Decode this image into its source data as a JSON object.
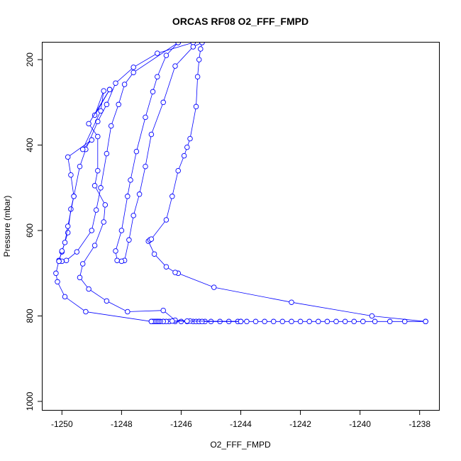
{
  "chart_data": {
    "type": "line",
    "title": "ORCAS RF08 O2_FFF_FMPD",
    "xlabel": "O2_FFF_FMPD",
    "ylabel": "Pressure (mbar)",
    "xlim": [
      -1250.65,
      -1237.35
    ],
    "ylim": [
      1020,
      160
    ],
    "y_reversed": true,
    "x_ticks": [
      -1250,
      -1248,
      -1246,
      -1244,
      -1242,
      -1240,
      -1238
    ],
    "y_ticks": [
      200,
      400,
      600,
      800,
      1000
    ],
    "grid": false,
    "line_color": "#0000ff",
    "marker": "open-circle",
    "series": [
      {
        "points": [
          [
            -1245.6,
            160
          ],
          [
            -1246.8,
            185
          ],
          [
            -1247.6,
            218
          ],
          [
            -1248.2,
            255
          ],
          [
            -1248.5,
            305
          ],
          [
            -1248.8,
            345
          ],
          [
            -1249.2,
            410
          ],
          [
            -1249.4,
            450
          ],
          [
            -1249.6,
            520
          ],
          [
            -1249.7,
            550
          ],
          [
            -1249.8,
            605
          ],
          [
            -1250.0,
            650
          ],
          [
            -1250.1,
            670
          ],
          [
            -1250.2,
            700
          ],
          [
            -1250.15,
            720
          ],
          [
            -1249.9,
            755
          ],
          [
            -1249.2,
            790
          ],
          [
            -1247.0,
            813
          ],
          [
            -1246.8,
            813
          ],
          [
            -1246.6,
            813
          ],
          [
            -1246.4,
            813
          ],
          [
            -1246.2,
            813
          ],
          [
            -1246.0,
            813
          ],
          [
            -1245.8,
            813
          ],
          [
            -1245.6,
            813
          ],
          [
            -1245.4,
            813
          ],
          [
            -1245.2,
            813
          ],
          [
            -1245.0,
            813
          ],
          [
            -1244.7,
            813
          ],
          [
            -1244.4,
            813
          ],
          [
            -1244.1,
            813
          ],
          [
            -1243.8,
            813
          ],
          [
            -1243.5,
            813
          ],
          [
            -1243.2,
            813
          ],
          [
            -1242.9,
            813
          ],
          [
            -1242.6,
            813
          ],
          [
            -1242.3,
            813
          ],
          [
            -1242.0,
            813
          ],
          [
            -1241.7,
            813
          ],
          [
            -1241.4,
            813
          ],
          [
            -1241.1,
            813
          ],
          [
            -1240.8,
            813
          ],
          [
            -1240.5,
            813
          ],
          [
            -1240.2,
            813
          ],
          [
            -1239.9,
            813
          ],
          [
            -1239.5,
            813
          ],
          [
            -1239.0,
            813
          ],
          [
            -1238.5,
            813
          ],
          [
            -1237.8,
            813
          ]
        ]
      },
      {
        "points": [
          [
            -1237.8,
            813
          ],
          [
            -1239.6,
            800
          ],
          [
            -1242.3,
            768
          ],
          [
            -1244.9,
            733
          ],
          [
            -1246.1,
            700
          ],
          [
            -1246.2,
            698
          ],
          [
            -1246.5,
            685
          ],
          [
            -1246.9,
            655
          ],
          [
            -1247.1,
            625
          ],
          [
            -1247.05,
            622
          ],
          [
            -1247.0,
            620
          ],
          [
            -1246.5,
            575
          ],
          [
            -1246.3,
            520
          ],
          [
            -1246.1,
            460
          ],
          [
            -1245.9,
            425
          ],
          [
            -1245.8,
            405
          ],
          [
            -1245.7,
            385
          ],
          [
            -1245.5,
            310
          ],
          [
            -1245.45,
            240
          ],
          [
            -1245.4,
            200
          ],
          [
            -1245.35,
            175
          ],
          [
            -1245.3,
            160
          ]
        ]
      },
      {
        "points": [
          [
            -1245.3,
            160
          ],
          [
            -1245.6,
            170
          ],
          [
            -1246.2,
            215
          ],
          [
            -1246.6,
            300
          ],
          [
            -1247.0,
            375
          ],
          [
            -1247.2,
            450
          ],
          [
            -1247.4,
            515
          ],
          [
            -1247.6,
            565
          ],
          [
            -1247.75,
            622
          ],
          [
            -1247.9,
            670
          ],
          [
            -1248.0,
            672
          ],
          [
            -1248.15,
            670
          ],
          [
            -1248.2,
            648
          ],
          [
            -1248.0,
            600
          ],
          [
            -1247.8,
            520
          ],
          [
            -1247.7,
            482
          ],
          [
            -1247.5,
            415
          ],
          [
            -1247.2,
            335
          ],
          [
            -1246.95,
            275
          ],
          [
            -1246.8,
            240
          ],
          [
            -1246.5,
            190
          ],
          [
            -1246.1,
            160
          ]
        ]
      },
      {
        "points": [
          [
            -1246.1,
            160
          ],
          [
            -1247.6,
            230
          ],
          [
            -1247.9,
            258
          ],
          [
            -1248.1,
            305
          ],
          [
            -1248.35,
            355
          ],
          [
            -1248.5,
            420
          ],
          [
            -1248.7,
            500
          ],
          [
            -1248.85,
            552
          ],
          [
            -1249.0,
            600
          ],
          [
            -1249.5,
            650
          ],
          [
            -1249.85,
            670
          ],
          [
            -1250.0,
            672
          ],
          [
            -1250.1,
            672
          ]
        ]
      },
      {
        "points": [
          [
            -1250.1,
            672
          ],
          [
            -1250.0,
            648
          ],
          [
            -1249.9,
            628
          ],
          [
            -1249.8,
            590
          ],
          [
            -1249.6,
            520
          ],
          [
            -1249.7,
            470
          ],
          [
            -1249.8,
            428
          ],
          [
            -1249.0,
            388
          ],
          [
            -1249.3,
            410
          ],
          [
            -1248.7,
            320
          ],
          [
            -1248.6,
            273
          ],
          [
            -1248.9,
            330
          ],
          [
            -1248.4,
            270
          ]
        ]
      },
      {
        "points": [
          [
            -1248.4,
            270
          ],
          [
            -1249.1,
            350
          ],
          [
            -1248.8,
            380
          ],
          [
            -1248.8,
            460
          ],
          [
            -1248.9,
            495
          ],
          [
            -1248.55,
            540
          ],
          [
            -1248.6,
            580
          ],
          [
            -1248.9,
            635
          ],
          [
            -1249.3,
            678
          ],
          [
            -1249.4,
            710
          ],
          [
            -1249.1,
            737
          ],
          [
            -1248.5,
            765
          ],
          [
            -1247.8,
            790
          ],
          [
            -1246.6,
            787
          ],
          [
            -1246.2,
            810
          ],
          [
            -1245.7,
            812
          ],
          [
            -1245.5,
            813
          ],
          [
            -1245.4,
            813
          ],
          [
            -1245.3,
            813
          ],
          [
            -1244.0,
            813
          ]
        ]
      },
      {
        "points": [
          [
            -1244.0,
            813
          ],
          [
            -1245.8,
            812
          ],
          [
            -1246.3,
            812
          ],
          [
            -1246.5,
            813
          ],
          [
            -1246.6,
            813
          ],
          [
            -1246.7,
            813
          ],
          [
            -1246.75,
            813
          ],
          [
            -1246.8,
            813
          ],
          [
            -1246.85,
            813
          ],
          [
            -1246.9,
            813
          ],
          [
            -1246.95,
            813
          ],
          [
            -1247.0,
            813
          ]
        ]
      }
    ]
  }
}
